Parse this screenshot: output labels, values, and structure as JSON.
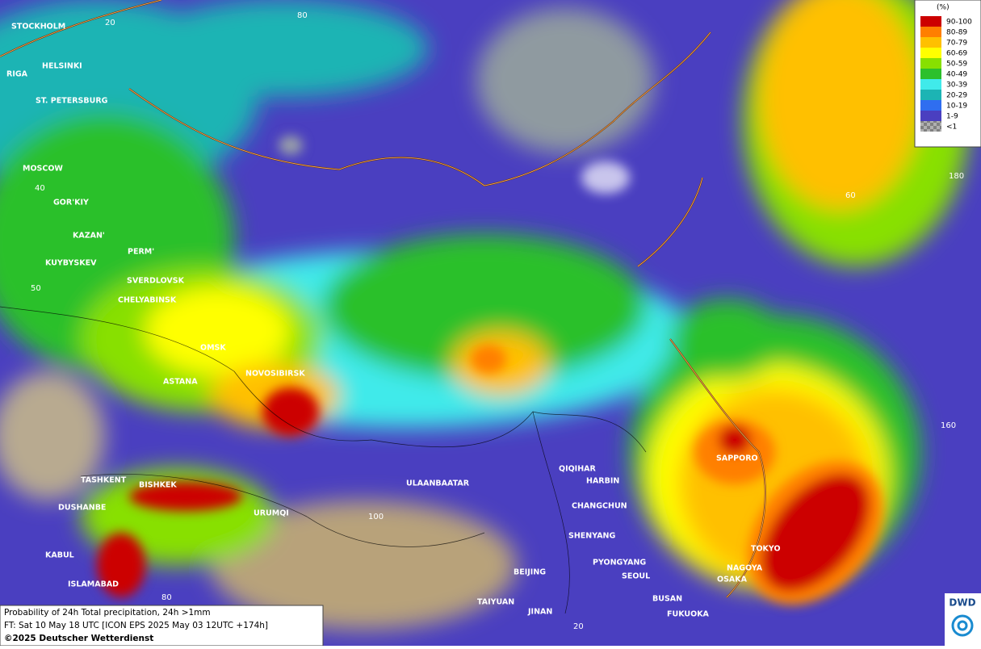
{
  "legend": {
    "title": "(%)",
    "items": [
      {
        "label": "90-100",
        "color": "#cc0000"
      },
      {
        "label": "80-89",
        "color": "#ff7f00"
      },
      {
        "label": "70-79",
        "color": "#ffc000"
      },
      {
        "label": "60-69",
        "color": "#ffff00"
      },
      {
        "label": "50-59",
        "color": "#88e000"
      },
      {
        "label": "40-49",
        "color": "#2cc02c"
      },
      {
        "label": "30-39",
        "color": "#40eaea"
      },
      {
        "label": "20-29",
        "color": "#1cb4b4"
      },
      {
        "label": "10-19",
        "color": "#2f6ef0"
      },
      {
        "label": "1-9",
        "color": "#4a3fc0"
      },
      {
        "label": "<1",
        "color": "#a0a0a0"
      }
    ]
  },
  "cities": [
    "STOCKHOLM",
    "HELSINKI",
    "RIGA",
    "ST. PETERSBURG",
    "MOSCOW",
    "GOR'KIY",
    "KAZAN'",
    "KUYBYSKEV",
    "PERM'",
    "SVERDLOVSK",
    "CHELYABINSK",
    "OMSK",
    "ASTANA",
    "NOVOSIBIRSK",
    "TASHKENT",
    "BISHKEK",
    "DUSHANBE",
    "URUMQI",
    "KABUL",
    "ISLAMABAD",
    "ULAANBAATAR",
    "QIQIHAR",
    "HARBIN",
    "CHANGCHUN",
    "SHENYANG",
    "PYONGYANG",
    "SEOUL",
    "BEIJING",
    "TAIYUAN",
    "JINAN",
    "BUSAN",
    "FUKUOKA",
    "SAPPORO",
    "TOKYO",
    "NAGOYA",
    "OSAKA"
  ],
  "grid_labels": [
    "20",
    "80",
    "40",
    "60",
    "50",
    "180",
    "160",
    "100",
    "80",
    "20"
  ],
  "footer": {
    "line1": "Probability of 24h Total precipitation, 24h >1mm",
    "line2": "FT: Sat 10 May 18 UTC [ICON EPS 2025 May 03 12UTC +174h]",
    "line3": "©2025 Deutscher Wetterdienst"
  },
  "logo": "DWD"
}
